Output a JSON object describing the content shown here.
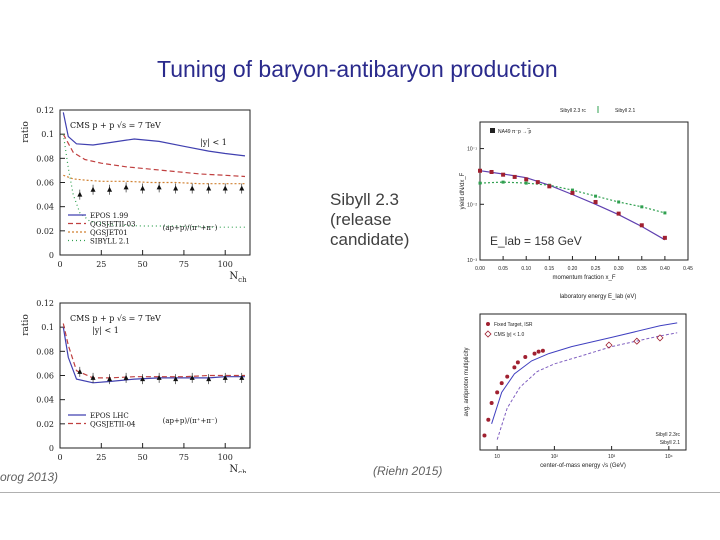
{
  "slide": {
    "title": "Tuning of baryon-antibaryon production",
    "caption_lines": [
      "Sibyll 2.3",
      "(release",
      "candidate)"
    ],
    "cite_left": "orog 2013)",
    "cite_right": "(Riehn 2015)"
  },
  "chart_data": [
    {
      "type": "line",
      "panel": "top-left",
      "title": "CMS p + p √s = 7 TeV",
      "annotation_cut": "|y| < 1",
      "ratio_label": "(ap+p)/(π⁺+π⁻)",
      "xlabel": "N_ch",
      "ylabel": "ratio",
      "xlim": [
        0,
        115
      ],
      "ylim": [
        0,
        0.12
      ],
      "x_ticks": [
        "0",
        "25",
        "50",
        "75",
        "100"
      ],
      "y_ticks": [
        "0",
        "0.02",
        "0.04",
        "0.06",
        "0.08",
        "0.1",
        "0.12"
      ],
      "series": [
        {
          "name": "EPOS 1.99",
          "color": "#4040b0",
          "dash": "",
          "x": [
            2,
            5,
            10,
            20,
            30,
            45,
            60,
            75,
            90,
            100,
            112
          ],
          "y": [
            0.118,
            0.098,
            0.092,
            0.091,
            0.093,
            0.096,
            0.094,
            0.09,
            0.086,
            0.084,
            0.082
          ]
        },
        {
          "name": "QGSJETII-03",
          "color": "#c04040",
          "dash": "5,3",
          "x": [
            2,
            8,
            15,
            25,
            40,
            55,
            70,
            85,
            100,
            112
          ],
          "y": [
            0.1,
            0.085,
            0.079,
            0.076,
            0.073,
            0.071,
            0.069,
            0.067,
            0.066,
            0.065
          ]
        },
        {
          "name": "QGSJET01",
          "color": "#d08030",
          "dash": "2,2",
          "x": [
            2,
            8,
            15,
            25,
            40,
            55,
            70,
            85,
            100,
            112
          ],
          "y": [
            0.066,
            0.063,
            0.062,
            0.061,
            0.061,
            0.06,
            0.06,
            0.059,
            0.059,
            0.059
          ]
        },
        {
          "name": "SIBYLL 2.1",
          "color": "#30a050",
          "dash": "1,3",
          "x": [
            2,
            5,
            8,
            12,
            18,
            30,
            50,
            70,
            90,
            112
          ],
          "y": [
            0.1,
            0.072,
            0.05,
            0.035,
            0.028,
            0.025,
            0.024,
            0.024,
            0.023,
            0.023
          ]
        }
      ],
      "data_points": {
        "x": [
          12,
          20,
          30,
          40,
          50,
          60,
          70,
          80,
          90,
          100,
          110
        ],
        "y": [
          0.05,
          0.054,
          0.054,
          0.056,
          0.055,
          0.056,
          0.055,
          0.055,
          0.055,
          0.055,
          0.055
        ]
      }
    },
    {
      "type": "line",
      "panel": "bottom-left",
      "title": "CMS p + p √s = 7 TeV",
      "annotation_cut": "|y| < 1",
      "ratio_label": "(ap+p)/(π⁺+π⁻)",
      "xlabel": "N_ch",
      "ylabel": "ratio",
      "xlim": [
        0,
        115
      ],
      "ylim": [
        0,
        0.12
      ],
      "x_ticks": [
        "0",
        "25",
        "50",
        "75",
        "100"
      ],
      "y_ticks": [
        "0",
        "0.02",
        "0.04",
        "0.06",
        "0.08",
        "0.1",
        "0.12"
      ],
      "series": [
        {
          "name": "EPOS LHC",
          "color": "#4040b0",
          "dash": "",
          "x": [
            2,
            5,
            10,
            20,
            30,
            45,
            60,
            75,
            90,
            100,
            112
          ],
          "y": [
            0.1,
            0.075,
            0.057,
            0.054,
            0.055,
            0.057,
            0.058,
            0.058,
            0.058,
            0.059,
            0.059
          ]
        },
        {
          "name": "QGSJETII-04",
          "color": "#c04040",
          "dash": "5,3",
          "x": [
            2,
            5,
            10,
            20,
            30,
            45,
            60,
            75,
            90,
            100,
            112
          ],
          "y": [
            0.103,
            0.085,
            0.064,
            0.058,
            0.058,
            0.059,
            0.059,
            0.059,
            0.06,
            0.06,
            0.06
          ]
        }
      ],
      "data_points": {
        "x": [
          12,
          20,
          30,
          40,
          50,
          60,
          70,
          80,
          90,
          100,
          110
        ],
        "y": [
          0.063,
          0.058,
          0.057,
          0.058,
          0.057,
          0.058,
          0.057,
          0.058,
          0.057,
          0.058,
          0.058
        ]
      }
    },
    {
      "type": "line",
      "panel": "top-right",
      "annotation": "E_lab = 158 GeV",
      "na49_label": "NA49 π⁻p → ̅p",
      "legend": [
        "Sibyll 2.3 rc",
        "Sibyll 2.1"
      ],
      "xlabel": "momentum fraction x_F",
      "ylabel": "yield dN/dx_F",
      "yscale": "log",
      "xlim": [
        0,
        0.45
      ],
      "ylim": [
        0.001,
        0.3
      ],
      "x_ticks": [
        "0.00",
        "0.05",
        "0.10",
        "0.15",
        "0.20",
        "0.25",
        "0.30",
        "0.35",
        "0.40",
        "0.45"
      ],
      "y_ticks": [
        "10⁻³",
        "10⁻²",
        "10⁻¹"
      ],
      "series": [
        {
          "name": "Sibyll 2.3 rc",
          "color": "#6040b0",
          "x": [
            0.0,
            0.05,
            0.1,
            0.15,
            0.2,
            0.25,
            0.3,
            0.35,
            0.4
          ],
          "y": [
            0.04,
            0.035,
            0.03,
            0.022,
            0.015,
            0.01,
            0.0065,
            0.004,
            0.0023
          ]
        },
        {
          "name": "Sibyll 2.1",
          "color": "#30a050",
          "x": [
            0.0,
            0.05,
            0.1,
            0.15,
            0.2,
            0.25,
            0.3,
            0.35,
            0.4
          ],
          "y": [
            0.024,
            0.025,
            0.024,
            0.022,
            0.018,
            0.014,
            0.011,
            0.009,
            0.007
          ]
        }
      ],
      "data_points": {
        "x": [
          0.0,
          0.025,
          0.05,
          0.075,
          0.1,
          0.125,
          0.15,
          0.2,
          0.25,
          0.3,
          0.35,
          0.4
        ],
        "y": [
          0.04,
          0.038,
          0.034,
          0.031,
          0.028,
          0.025,
          0.021,
          0.016,
          0.011,
          0.0068,
          0.0042,
          0.0025
        ]
      }
    },
    {
      "type": "line",
      "panel": "bottom-right",
      "top_axis_label": "laboratory energy E_lab (eV)",
      "xlabel": "center-of-mass energy √s (GeV)",
      "ylabel": "avg. antiproton multiplicity",
      "legend": [
        "Fixed Target, ISR",
        "CMS |y| < 1.0"
      ],
      "model_legend": [
        "Sibyll 2.3rc",
        "Sibyll 2.1"
      ],
      "xscale": "log",
      "yscale": "log",
      "x_ticks": [
        "10",
        "10²",
        "10³",
        "10⁴"
      ],
      "series": [
        {
          "name": "Sibyll 2.3rc",
          "color": "#4040c0",
          "x": [
            8,
            12,
            20,
            40,
            80,
            200,
            1000,
            7000,
            14000
          ],
          "y": [
            0.01,
            0.04,
            0.09,
            0.16,
            0.22,
            0.3,
            0.45,
            0.75,
            0.85
          ]
        },
        {
          "name": "Sibyll 2.1",
          "color": "#8060c0",
          "x": [
            10,
            15,
            25,
            50,
            100,
            300,
            1000,
            7000,
            14000
          ],
          "y": [
            0.005,
            0.02,
            0.05,
            0.1,
            0.14,
            0.2,
            0.3,
            0.48,
            0.55
          ]
        }
      ],
      "data_points": {
        "name": "Fixed Target, ISR",
        "x": [
          6,
          7,
          8,
          10,
          12,
          15,
          20,
          23,
          31,
          45,
          53,
          63
        ],
        "y": [
          0.006,
          0.012,
          0.025,
          0.04,
          0.06,
          0.08,
          0.12,
          0.15,
          0.19,
          0.22,
          0.24,
          0.25
        ]
      },
      "cms_points": {
        "name": "CMS |y| < 1.0",
        "x": [
          900,
          2760,
          7000
        ],
        "y": [
          0.32,
          0.38,
          0.44
        ]
      }
    }
  ]
}
